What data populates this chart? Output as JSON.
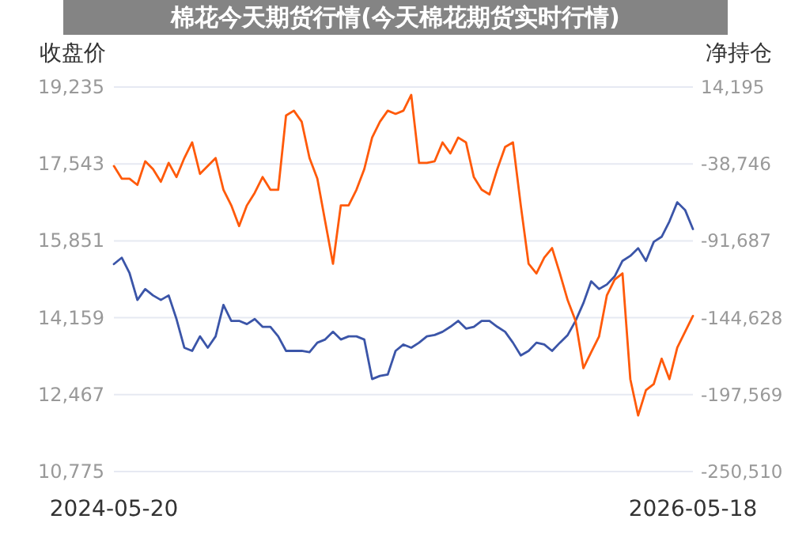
{
  "chart_data": {
    "type": "line",
    "title": "棉花今天期货行情(今天棉花期货实时行情)",
    "ylabel": "收盘价",
    "y2label": "净持仓",
    "categories": [
      "2024-05-20",
      null,
      null,
      null,
      null,
      null,
      null,
      null,
      null,
      null,
      null,
      null,
      null,
      null,
      null,
      null,
      null,
      null,
      null,
      null,
      null,
      null,
      null,
      null,
      null,
      null,
      null,
      null,
      null,
      null,
      null,
      null,
      null,
      null,
      null,
      null,
      null,
      null,
      null,
      null,
      null,
      null,
      null,
      null,
      null,
      null,
      null,
      null,
      null,
      null,
      null,
      null,
      null,
      null,
      null,
      null,
      null,
      null,
      null,
      null,
      null,
      null,
      null,
      null,
      null,
      null,
      null,
      null,
      null,
      null,
      null,
      null,
      null,
      null,
      "2026-05-18"
    ],
    "series": [
      {
        "color": "#3b55a8",
        "axis": "y",
        "values": [
          15340,
          15480,
          15140,
          14550,
          14790,
          14650,
          14550,
          14650,
          14130,
          13500,
          13430,
          13750,
          13500,
          13750,
          14440,
          14090,
          14090,
          14020,
          14130,
          13960,
          13960,
          13750,
          13430,
          13430,
          13430,
          13400,
          13610,
          13680,
          13850,
          13680,
          13750,
          13750,
          13680,
          12810,
          12880,
          12910,
          13430,
          13570,
          13500,
          13610,
          13750,
          13780,
          13850,
          13960,
          14090,
          13920,
          13960,
          14090,
          14090,
          13960,
          13850,
          13610,
          13330,
          13430,
          13610,
          13570,
          13430,
          13610,
          13780,
          14090,
          14480,
          14960,
          14790,
          14890,
          15070,
          15410,
          15520,
          15690,
          15410,
          15830,
          15940,
          16280,
          16700,
          16530,
          16110
        ]
      },
      {
        "color": "#ff5a0a",
        "axis": "y2",
        "values": [
          -40200,
          -48900,
          -48900,
          -53200,
          -36900,
          -42300,
          -51000,
          -38000,
          -47800,
          -34700,
          -23900,
          -45600,
          -40200,
          -34700,
          -56500,
          -67300,
          -81500,
          -67300,
          -58600,
          -47800,
          -56500,
          -56500,
          -5400,
          -2100,
          -9700,
          -34700,
          -48900,
          -78200,
          -107500,
          -67300,
          -67300,
          -56500,
          -42300,
          -20600,
          -9700,
          -2100,
          -4300,
          -2100,
          8800,
          -38000,
          -38000,
          -36900,
          -23900,
          -31500,
          -20600,
          -23900,
          -47800,
          -56500,
          -59700,
          -42300,
          -27100,
          -23900,
          -67300,
          -107500,
          -114100,
          -103200,
          -96700,
          -114100,
          -132600,
          -146700,
          -179300,
          -168400,
          -157600,
          -129300,
          -118400,
          -114100,
          -186900,
          -211900,
          -194500,
          -190200,
          -172800,
          -186900,
          -165200,
          -154300,
          -143400
        ]
      }
    ],
    "ylim": [
      10775,
      19235
    ],
    "yticks": [
      {
        "value": 10775,
        "label": "10,775"
      },
      {
        "value": 12467,
        "label": "12,467"
      },
      {
        "value": 14159,
        "label": "14,159"
      },
      {
        "value": 15851,
        "label": "15,851"
      },
      {
        "value": 17543,
        "label": "17,543"
      },
      {
        "value": 19235,
        "label": "19,235"
      }
    ],
    "y2lim": [
      -250510,
      14195
    ],
    "y2ticks": [
      {
        "value": -250510,
        "label": "-250,510"
      },
      {
        "value": -197569,
        "label": "-197,569"
      },
      {
        "value": -144628,
        "label": "-144,628"
      },
      {
        "value": -91687,
        "label": "-91,687"
      },
      {
        "value": -38746,
        "label": "-38,746"
      },
      {
        "value": 14195,
        "label": "14,195"
      }
    ],
    "grid": "y"
  }
}
